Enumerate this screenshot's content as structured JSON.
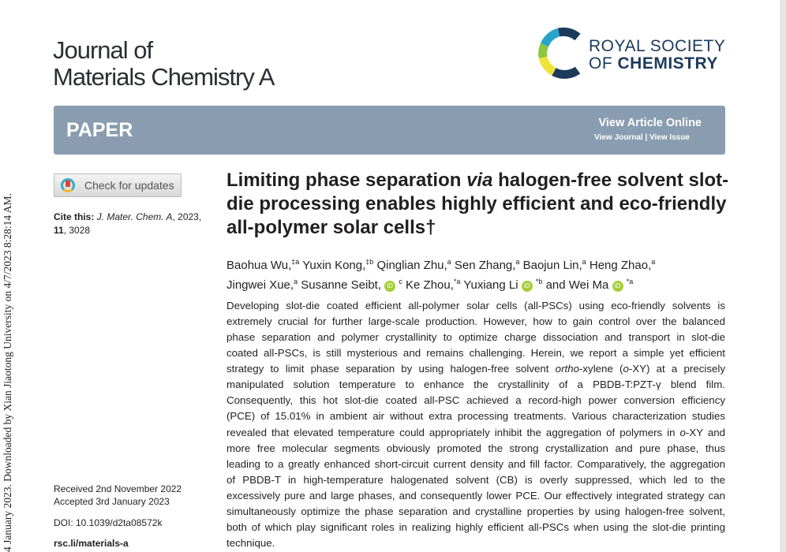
{
  "side_note": "4 January 2023. Downloaded by Xian Jiaotong University on 4/7/2023 8:28:14 AM.",
  "journal": {
    "line1": "Journal of",
    "line2": "Materials Chemistry A"
  },
  "publisher": {
    "line1": "ROYAL SOCIETY",
    "line2_a": "OF ",
    "line2_b": "CHEMISTRY"
  },
  "banner": {
    "type": "PAPER",
    "view_online": "View Article Online",
    "view_journal": "View Journal",
    "sep": " | ",
    "view_issue": "View Issue",
    "color": "#8a9db0"
  },
  "check_updates": "Check for updates",
  "cite": {
    "label": "Cite this: ",
    "journal": "J. Mater. Chem. A",
    "rest": ", 2023, ",
    "vol": "11",
    "page": ", 3028"
  },
  "received": "Received 2nd November 2022",
  "accepted": "Accepted 3rd January 2023",
  "doi": "DOI: 10.1039/d2ta08572k",
  "link": "rsc.li/materials-a",
  "title": {
    "a": "Limiting phase separation ",
    "via": "via",
    "b": " halogen-free solvent slot-die processing enables highly efficient and eco-friendly all-polymer solar cells†"
  },
  "authors": [
    {
      "n": "Baohua Wu,",
      "s": "‡a"
    },
    {
      "n": "Yuxin Kong,",
      "s": "‡b"
    },
    {
      "n": "Qinglian Zhu,",
      "s": "a"
    },
    {
      "n": "Sen Zhang,",
      "s": "a"
    },
    {
      "n": "Baojun Lin,",
      "s": "a"
    },
    {
      "n": "Heng Zhao,",
      "s": "a"
    },
    {
      "n": "Jingwei Xue,",
      "s": "a"
    },
    {
      "n": "Susanne Seibt,",
      "orcid": true,
      "s": "c"
    },
    {
      "n": "Ke Zhou,",
      "s": "*a"
    },
    {
      "n": "Yuxiang Li",
      "orcid": true,
      "s": "*b"
    },
    {
      "n": "and Wei Ma",
      "orcid": true,
      "s": "*a"
    }
  ],
  "orcid_label": "iD",
  "abstract": [
    [
      [
        "Developing slot-die coated efficient all-polymer solar cells (all-PSCs) using eco-friendly solvents is",
        0
      ]
    ],
    [
      [
        "extremely crucial for further large-scale production. However, how to gain control over the balanced",
        0
      ]
    ],
    [
      [
        "phase separation and polymer crystallinity to optimize charge dissociation and transport in slot-die",
        0
      ]
    ],
    [
      [
        "coated all-PSCs, is still mysterious and remains challenging. Herein, we report a simple yet efficient",
        0
      ]
    ],
    [
      [
        "strategy to limit phase separation by using halogen-free solvent ",
        0
      ],
      [
        "ortho",
        1
      ],
      [
        "-xylene (",
        0
      ],
      [
        "o",
        1
      ],
      [
        "-XY) at a precisely",
        0
      ]
    ],
    [
      [
        "manipulated solution temperature to enhance the crystallinity of a PBDB-T:PZT-γ blend film.",
        0
      ]
    ],
    [
      [
        "Consequently, this hot slot-die coated all-PSC achieved a record-high power conversion efficiency",
        0
      ]
    ],
    [
      [
        "(PCE) of 15.01% in ambient air without extra processing treatments. Various characterization studies",
        0
      ]
    ],
    [
      [
        "revealed that elevated temperature could appropriately inhibit the aggregation of polymers in ",
        0
      ],
      [
        "o",
        1
      ],
      [
        "-XY and",
        0
      ]
    ],
    [
      [
        "more free molecular segments obviously promoted the strong crystallization and pure phase, thus",
        0
      ]
    ],
    [
      [
        "leading to a greatly enhanced short-circuit current density and fill factor. Comparatively, the aggregation",
        0
      ]
    ],
    [
      [
        "of PBDB-T in high-temperature halogenated solvent (CB) is overly suppressed, which led to the",
        0
      ]
    ],
    [
      [
        "excessively pure and large phases, and consequently lower PCE. Our effectively integrated strategy can",
        0
      ]
    ],
    [
      [
        "simultaneously optimize the phase separation and crystalline properties by using halogen-free solvent,",
        0
      ]
    ],
    [
      [
        "both of which play significant roles in realizing highly efficient all-PSCs when using the slot-die printing",
        0
      ]
    ],
    [
      [
        "technique.",
        0
      ]
    ]
  ]
}
